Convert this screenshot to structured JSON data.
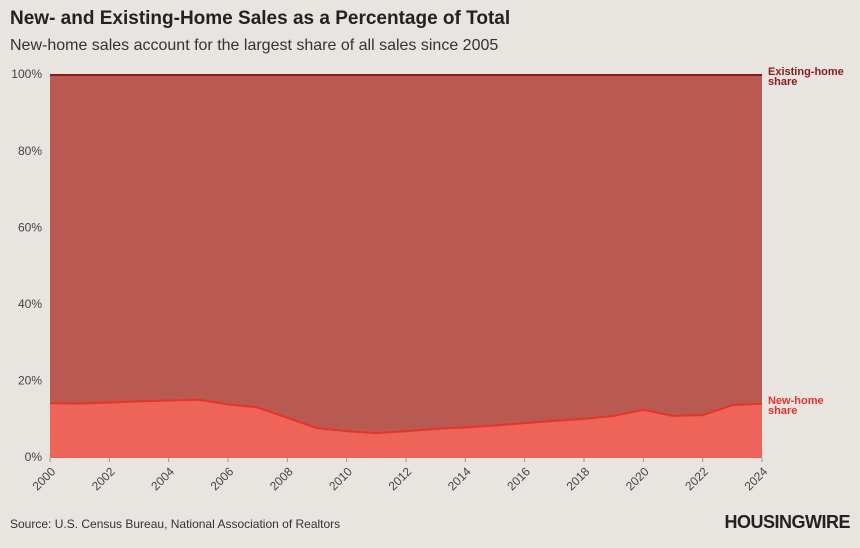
{
  "chart_data": {
    "type": "area",
    "title": "New- and Existing-Home Sales as a Percentage of Total",
    "subtitle": "New-home sales account for the largest share of all sales since 2005",
    "source": "Source: U.S. Census Bureau, National Association of Realtors",
    "logo": "HOUSINGWIRE",
    "stacked": true,
    "x": [
      2000,
      2001,
      2002,
      2003,
      2004,
      2005,
      2006,
      2007,
      2008,
      2009,
      2010,
      2011,
      2012,
      2013,
      2014,
      2015,
      2016,
      2017,
      2018,
      2019,
      2020,
      2021,
      2022,
      2023,
      2024
    ],
    "series": [
      {
        "name": "New-home share",
        "color": "#ee6458",
        "line_color": "#e8322a",
        "values": [
          14.3,
          14.2,
          14.5,
          14.8,
          15.0,
          15.2,
          14.0,
          13.2,
          10.5,
          7.8,
          7.0,
          6.5,
          7.0,
          7.6,
          8.0,
          8.5,
          9.1,
          9.7,
          10.2,
          11.0,
          12.6,
          11.0,
          11.2,
          13.8,
          14.2
        ]
      },
      {
        "name": "Existing-home share",
        "color": "#b85a52",
        "line_color": "#8b1a1a",
        "values": [
          85.7,
          85.8,
          85.5,
          85.2,
          85.0,
          84.8,
          86.0,
          86.8,
          89.5,
          92.2,
          93.0,
          93.5,
          93.0,
          92.4,
          92.0,
          91.5,
          90.9,
          90.3,
          89.8,
          89.0,
          87.4,
          89.0,
          88.8,
          86.2,
          85.8
        ]
      }
    ],
    "xlim": [
      2000,
      2024
    ],
    "xticks": [
      2000,
      2002,
      2004,
      2006,
      2008,
      2010,
      2012,
      2014,
      2016,
      2018,
      2020,
      2022,
      2024
    ],
    "ylim": [
      0,
      100
    ],
    "yticks": [
      {
        "value": 0,
        "label": "0%"
      },
      {
        "value": 20,
        "label": "20%"
      },
      {
        "value": 40,
        "label": "40%"
      },
      {
        "value": 60,
        "label": "60%"
      },
      {
        "value": 80,
        "label": "80%"
      },
      {
        "value": 100,
        "label": "100%"
      }
    ]
  }
}
